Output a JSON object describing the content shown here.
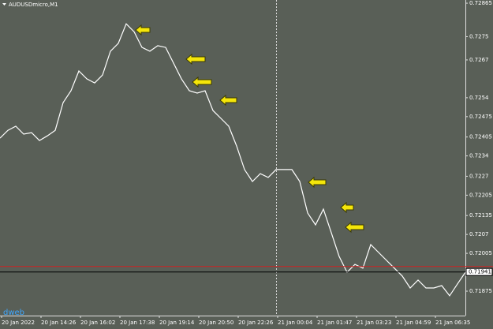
{
  "chart_data": {
    "type": "line",
    "title": "AUDUSDmicro,M1",
    "watermark": "dweb",
    "color": "#ffffff",
    "values": [
      0.72401,
      0.72428,
      0.72442,
      0.72415,
      0.7242,
      0.72393,
      0.72409,
      0.72428,
      0.72523,
      0.72564,
      0.72632,
      0.72605,
      0.72591,
      0.72618,
      0.727,
      0.72727,
      0.72794,
      0.72767,
      0.72713,
      0.727,
      0.72719,
      0.72713,
      0.72659,
      0.72605,
      0.72564,
      0.72556,
      0.72564,
      0.72496,
      0.72469,
      0.72442,
      0.72374,
      0.72293,
      0.72252,
      0.72279,
      0.72266,
      0.72293,
      0.72293,
      0.72293,
      0.72252,
      0.72144,
      0.72103,
      0.72157,
      0.72076,
      0.71994,
      0.7194,
      0.71967,
      0.71954,
      0.72035,
      0.72008,
      0.71981,
      0.71954,
      0.71927,
      0.71886,
      0.71913,
      0.71886,
      0.71886,
      0.71894,
      0.71859,
      0.719,
      0.7194
    ],
    "ylim": [
      0.71791,
      0.72876
    ],
    "yticks": [
      0.72865,
      0.7275,
      0.7267,
      0.7254,
      0.72475,
      0.72405,
      0.7234,
      0.7227,
      0.72205,
      0.72135,
      0.7207,
      0.72005,
      0.71875
    ],
    "xticks": [
      "20 Jan 2022",
      "20 Jan 14:26",
      "20 Jan 16:02",
      "20 Jan 17:38",
      "20 Jan 19:14",
      "20 Jan 20:50",
      "20 Jan 22:26",
      "21 Jan 00:04",
      "21 Jan 01:47",
      "21 Jan 03:23",
      "21 Jan 04:59",
      "21 Jan 06:35"
    ],
    "current_price": 0.71941,
    "current_price_color": "#000000",
    "ask_price": 0.7196,
    "ask_price_color": "#d02020"
  }
}
